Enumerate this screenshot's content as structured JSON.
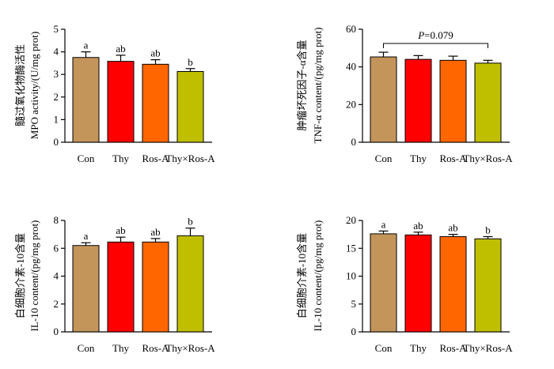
{
  "chart_data": [
    {
      "type": "bar",
      "categories": [
        "Con",
        "Thy",
        "Ros-A",
        "Thy×Ros-A"
      ],
      "values": [
        3.75,
        3.58,
        3.45,
        3.13
      ],
      "errors": [
        0.25,
        0.27,
        0.2,
        0.13
      ],
      "sig_letters": [
        "a",
        "ab",
        "ab",
        "b"
      ],
      "ylabel_cn": "髓过氧化物酶活性",
      "ylabel_en": "MPO activity/(U/mg prot)",
      "ylim": [
        0,
        5
      ],
      "yticks": [
        "0",
        "1",
        "2",
        "3",
        "4",
        "5"
      ],
      "annotation": ""
    },
    {
      "type": "bar",
      "categories": [
        "Con",
        "Thy",
        "Ros-A",
        "Thy×Ros-A"
      ],
      "values": [
        45.3,
        44.0,
        43.5,
        42.0
      ],
      "errors": [
        2.5,
        2.0,
        2.2,
        1.5
      ],
      "sig_letters": [
        "",
        "",
        "",
        ""
      ],
      "ylabel_cn": "肿瘤坏死因子-α含量",
      "ylabel_en": "TNF-α content/(pg/mg prot)",
      "ylim": [
        0,
        60
      ],
      "yticks": [
        "0",
        "20",
        "40",
        "60"
      ],
      "annotation": "P=0.079"
    },
    {
      "type": "bar",
      "categories": [
        "Con",
        "Thy",
        "Ros-A",
        "Thy×Ros-A"
      ],
      "values": [
        6.2,
        6.45,
        6.45,
        6.9
      ],
      "errors": [
        0.2,
        0.35,
        0.25,
        0.55
      ],
      "sig_letters": [
        "a",
        "ab",
        "ab",
        "b"
      ],
      "ylabel_cn": "白细胞介素-10含量",
      "ylabel_en": "IL-10 content/(pg/mg prot)",
      "ylim": [
        0,
        8
      ],
      "yticks": [
        "0",
        "2",
        "4",
        "6",
        "8"
      ],
      "annotation": ""
    },
    {
      "type": "bar",
      "categories": [
        "Con",
        "Thy",
        "Ros-A",
        "Thy×Ros-A"
      ],
      "values": [
        17.6,
        17.4,
        17.1,
        16.7
      ],
      "errors": [
        0.5,
        0.5,
        0.4,
        0.4
      ],
      "sig_letters": [
        "a",
        "ab",
        "ab",
        "b"
      ],
      "ylabel_cn": "白细胞介素-10含量",
      "ylabel_en": "IL-10 content/(pg/mg prot)",
      "ylim": [
        0,
        20
      ],
      "yticks": [
        "0",
        "5",
        "10",
        "15",
        "20"
      ],
      "annotation": ""
    }
  ],
  "colors": {
    "bars": [
      "#c4955a",
      "#ff0000",
      "#ff6600",
      "#bfbf00"
    ],
    "axis": "#000000"
  }
}
